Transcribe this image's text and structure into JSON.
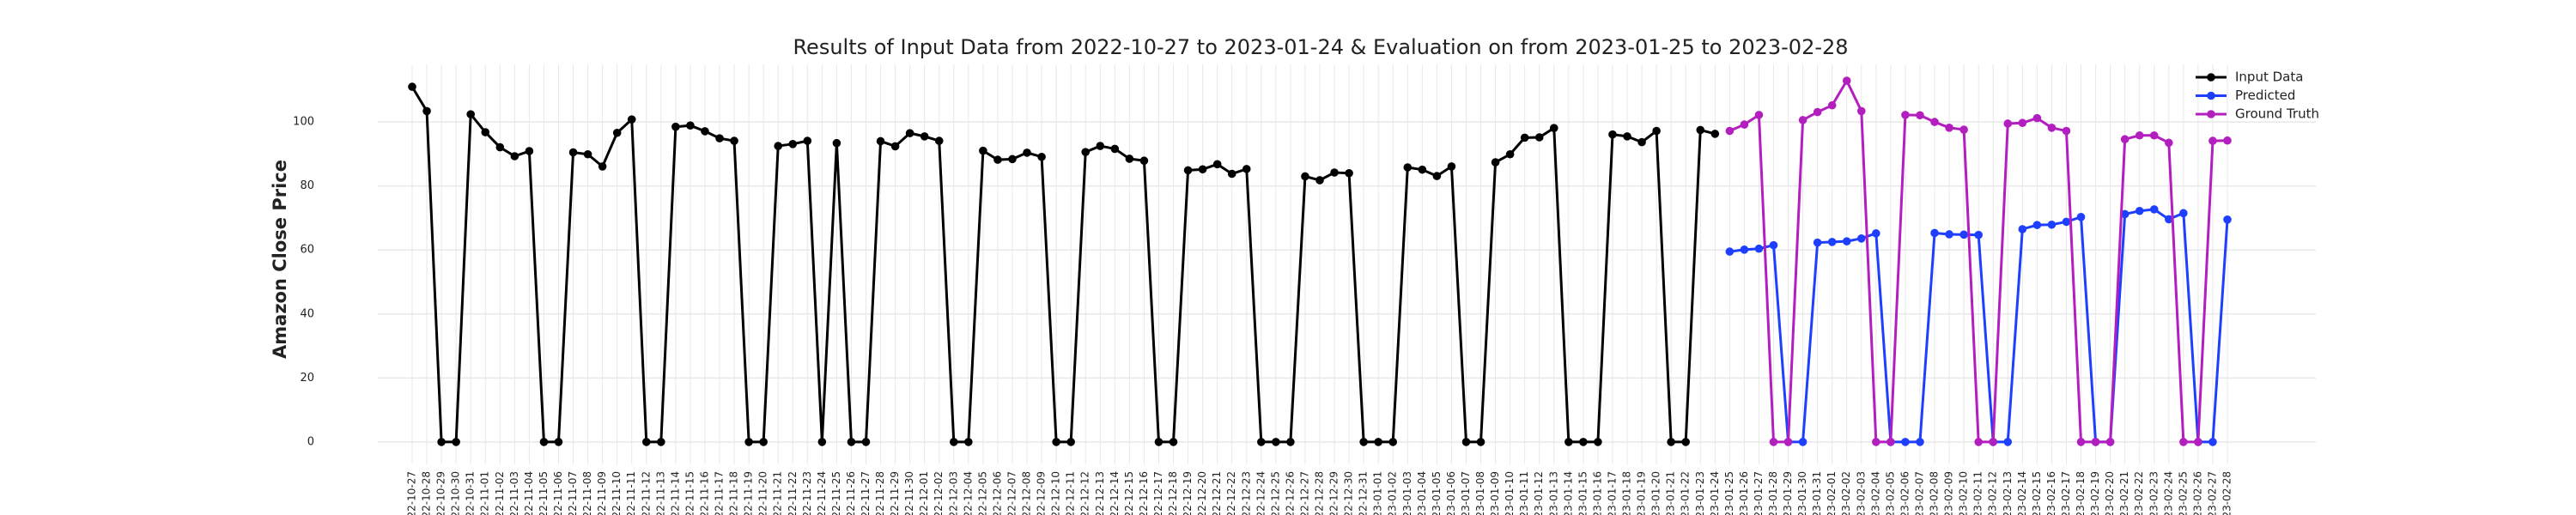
{
  "chart_data": {
    "type": "line",
    "title": "Results of Input Data from 2022-10-27 to 2023-01-24 & Evaluation on from 2023-01-25 to 2023-02-28",
    "y_label": "Amazon Close Price",
    "x": [
      "2022-10-27",
      "2022-10-28",
      "2022-10-29",
      "2022-10-30",
      "2022-10-31",
      "2022-11-01",
      "2022-11-02",
      "2022-11-03",
      "2022-11-04",
      "2022-11-05",
      "2022-11-06",
      "2022-11-07",
      "2022-11-08",
      "2022-11-09",
      "2022-11-10",
      "2022-11-11",
      "2022-11-12",
      "2022-11-13",
      "2022-11-14",
      "2022-11-15",
      "2022-11-16",
      "2022-11-17",
      "2022-11-18",
      "2022-11-19",
      "2022-11-20",
      "2022-11-21",
      "2022-11-22",
      "2022-11-23",
      "2022-11-24",
      "2022-11-25",
      "2022-11-26",
      "2022-11-27",
      "2022-11-28",
      "2022-11-29",
      "2022-11-30",
      "2022-12-01",
      "2022-12-02",
      "2022-12-03",
      "2022-12-04",
      "2022-12-05",
      "2022-12-06",
      "2022-12-07",
      "2022-12-08",
      "2022-12-09",
      "2022-12-10",
      "2022-12-11",
      "2022-12-12",
      "2022-12-13",
      "2022-12-14",
      "2022-12-15",
      "2022-12-16",
      "2022-12-17",
      "2022-12-18",
      "2022-12-19",
      "2022-12-20",
      "2022-12-21",
      "2022-12-22",
      "2022-12-23",
      "2022-12-24",
      "2022-12-25",
      "2022-12-26",
      "2022-12-27",
      "2022-12-28",
      "2022-12-29",
      "2022-12-30",
      "2022-12-31",
      "2023-01-01",
      "2023-01-02",
      "2023-01-03",
      "2023-01-04",
      "2023-01-05",
      "2023-01-06",
      "2023-01-07",
      "2023-01-08",
      "2023-01-09",
      "2023-01-10",
      "2023-01-11",
      "2023-01-12",
      "2023-01-13",
      "2023-01-14",
      "2023-01-15",
      "2023-01-16",
      "2023-01-17",
      "2023-01-18",
      "2023-01-19",
      "2023-01-20",
      "2023-01-21",
      "2023-01-22",
      "2023-01-23",
      "2023-01-24",
      "2023-01-25",
      "2023-01-26",
      "2023-01-27",
      "2023-01-28",
      "2023-01-29",
      "2023-01-30",
      "2023-01-31",
      "2023-02-01",
      "2023-02-02",
      "2023-02-03",
      "2023-02-04",
      "2023-02-05",
      "2023-02-06",
      "2023-02-07",
      "2023-02-08",
      "2023-02-09",
      "2023-02-10",
      "2023-02-11",
      "2023-02-12",
      "2023-02-13",
      "2023-02-14",
      "2023-02-15",
      "2023-02-16",
      "2023-02-17",
      "2023-02-18",
      "2023-02-19",
      "2023-02-20",
      "2023-02-21",
      "2023-02-22",
      "2023-02-23",
      "2023-02-24",
      "2023-02-25",
      "2023-02-26",
      "2023-02-27",
      "2023-02-28"
    ],
    "series": [
      {
        "name": "Input Data",
        "color": "#000000",
        "values": [
          111.0,
          103.4,
          0,
          0,
          102.4,
          96.8,
          92.1,
          89.3,
          90.9,
          0,
          0,
          90.5,
          89.9,
          86.1,
          96.6,
          100.8,
          0,
          0,
          98.5,
          98.9,
          97.1,
          94.9,
          94.1,
          0,
          0,
          92.5,
          93.1,
          94.1,
          0,
          93.4,
          0,
          0,
          94.0,
          92.4,
          96.5,
          95.5,
          94.1,
          0,
          0,
          91.0,
          88.2,
          88.4,
          90.4,
          89.1,
          0,
          0,
          90.6,
          92.5,
          91.6,
          88.5,
          87.9,
          0,
          0,
          84.9,
          85.2,
          86.8,
          83.8,
          85.3,
          0,
          0,
          0,
          83.0,
          81.8,
          84.2,
          84.0,
          0,
          0,
          0,
          85.8,
          85.1,
          83.1,
          86.1,
          0,
          0,
          87.4,
          89.9,
          95.1,
          95.2,
          98.1,
          0,
          0,
          0,
          96.1,
          95.5,
          93.7,
          97.2,
          0,
          0,
          97.5,
          96.3,
          null,
          null,
          null,
          null,
          null,
          null,
          null,
          null,
          null,
          null,
          null,
          null,
          null,
          null,
          null,
          null,
          null,
          null,
          null,
          null,
          null,
          null,
          null,
          null,
          null,
          null,
          null,
          null,
          null,
          null,
          null,
          null,
          null,
          null,
          null
        ]
      },
      {
        "name": "Predicted",
        "color": "#1f3fff",
        "values": [
          null,
          null,
          null,
          null,
          null,
          null,
          null,
          null,
          null,
          null,
          null,
          null,
          null,
          null,
          null,
          null,
          null,
          null,
          null,
          null,
          null,
          null,
          null,
          null,
          null,
          null,
          null,
          null,
          null,
          null,
          null,
          null,
          null,
          null,
          null,
          null,
          null,
          null,
          null,
          null,
          null,
          null,
          null,
          null,
          null,
          null,
          null,
          null,
          null,
          null,
          null,
          null,
          null,
          null,
          null,
          null,
          null,
          null,
          null,
          null,
          null,
          null,
          null,
          null,
          null,
          null,
          null,
          null,
          null,
          null,
          null,
          null,
          null,
          null,
          null,
          null,
          null,
          null,
          null,
          null,
          null,
          null,
          null,
          null,
          null,
          null,
          null,
          null,
          null,
          null,
          59.5,
          60.1,
          60.4,
          61.5,
          0,
          0,
          62.3,
          62.5,
          62.7,
          63.6,
          65.2,
          0,
          0,
          0,
          65.3,
          64.9,
          64.8,
          64.7,
          0,
          0,
          66.5,
          67.8,
          67.9,
          68.8,
          70.3,
          0,
          0,
          71.2,
          72.2,
          72.7,
          69.6,
          71.5,
          0,
          0,
          69.5
        ]
      },
      {
        "name": "Ground Truth",
        "color": "#b31fbf",
        "values": [
          null,
          null,
          null,
          null,
          null,
          null,
          null,
          null,
          null,
          null,
          null,
          null,
          null,
          null,
          null,
          null,
          null,
          null,
          null,
          null,
          null,
          null,
          null,
          null,
          null,
          null,
          null,
          null,
          null,
          null,
          null,
          null,
          null,
          null,
          null,
          null,
          null,
          null,
          null,
          null,
          null,
          null,
          null,
          null,
          null,
          null,
          null,
          null,
          null,
          null,
          null,
          null,
          null,
          null,
          null,
          null,
          null,
          null,
          null,
          null,
          null,
          null,
          null,
          null,
          null,
          null,
          null,
          null,
          null,
          null,
          null,
          null,
          null,
          null,
          null,
          null,
          null,
          null,
          null,
          null,
          null,
          null,
          null,
          null,
          null,
          null,
          null,
          null,
          null,
          null,
          97.2,
          99.2,
          102.2,
          0,
          0,
          100.6,
          103.1,
          105.2,
          112.9,
          103.4,
          0,
          0,
          102.2,
          102.1,
          100.0,
          98.2,
          97.6,
          0,
          0,
          99.5,
          99.7,
          101.2,
          98.2,
          97.2,
          0,
          0,
          0,
          94.6,
          95.8,
          95.8,
          93.5,
          0,
          0,
          94.1,
          94.2
        ]
      }
    ],
    "ylim": [
      -7,
      118
    ],
    "yticks": [
      0,
      20,
      40,
      60,
      80,
      100
    ],
    "grid": true,
    "legend": "upper right"
  }
}
